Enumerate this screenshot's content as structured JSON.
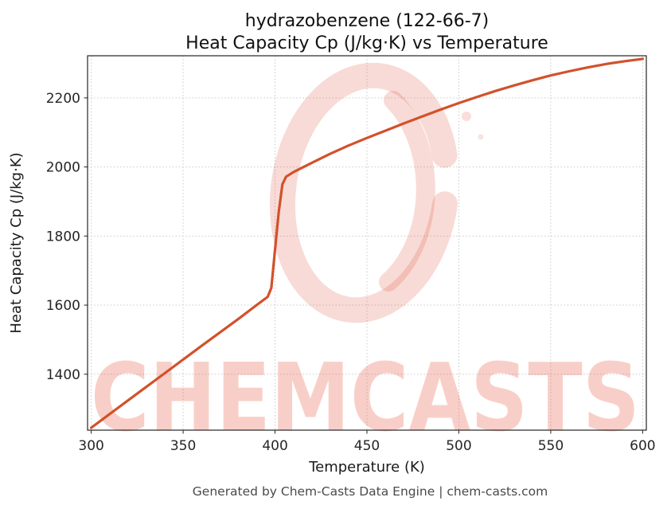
{
  "chart_data": {
    "type": "line",
    "title_line1": "hydrazobenzene (122-66-7)",
    "title_line2": "Heat Capacity Cp (J/kg·K) vs Temperature",
    "xlabel": "Temperature (K)",
    "ylabel": "Heat Capacity Cp (J/kg·K)",
    "xlim": [
      298,
      602
    ],
    "ylim": [
      1238,
      2322
    ],
    "xticks": [
      300,
      350,
      400,
      450,
      500,
      550,
      600
    ],
    "yticks": [
      1400,
      1600,
      1800,
      2000,
      2200
    ],
    "grid": true,
    "line_color": "#d2512b",
    "series": [
      {
        "name": "Heat Capacity Cp (J/kg·K)",
        "points": [
          [
            300,
            1245
          ],
          [
            320,
            1324
          ],
          [
            340,
            1403
          ],
          [
            360,
            1482
          ],
          [
            380,
            1560
          ],
          [
            390,
            1600
          ],
          [
            396,
            1624
          ],
          [
            398,
            1650
          ],
          [
            400,
            1760
          ],
          [
            402,
            1870
          ],
          [
            404,
            1950
          ],
          [
            406,
            1972
          ],
          [
            410,
            1985
          ],
          [
            420,
            2012
          ],
          [
            430,
            2038
          ],
          [
            440,
            2062
          ],
          [
            450,
            2084
          ],
          [
            460,
            2105
          ],
          [
            470,
            2126
          ],
          [
            480,
            2146
          ],
          [
            490,
            2166
          ],
          [
            500,
            2185
          ],
          [
            510,
            2203
          ],
          [
            520,
            2220
          ],
          [
            530,
            2236
          ],
          [
            540,
            2251
          ],
          [
            550,
            2265
          ],
          [
            560,
            2277
          ],
          [
            570,
            2288
          ],
          [
            580,
            2298
          ],
          [
            590,
            2306
          ],
          [
            600,
            2313
          ]
        ]
      }
    ]
  },
  "watermark": {
    "text": "CHEMCASTS",
    "color": "#e24a30"
  },
  "footer": {
    "text": "Generated by Chem-Casts Data Engine | chem-casts.com"
  }
}
